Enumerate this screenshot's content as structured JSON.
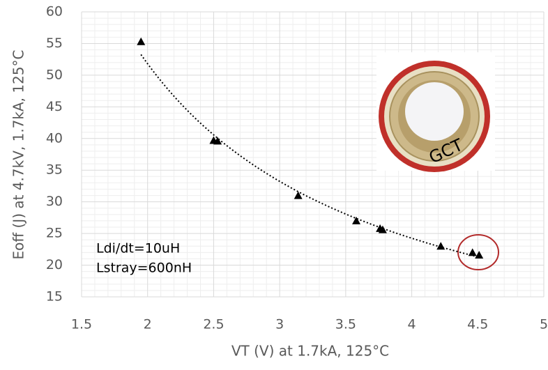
{
  "chart_data": {
    "type": "scatter",
    "x_label": "VT (V) at 1.7kA, 125°C",
    "y_label": "Eoff (J) at 4.7kV, 1.7kA, 125°C",
    "x": [
      1.95,
      2.5,
      2.53,
      3.14,
      3.58,
      3.76,
      3.78,
      4.22,
      4.46,
      4.51
    ],
    "values": [
      55.3,
      39.7,
      39.6,
      31.0,
      27.0,
      25.8,
      25.6,
      23.0,
      22.0,
      21.6
    ],
    "color": "#000000",
    "trendline": "power",
    "xlim": [
      1.5,
      5
    ],
    "xticks": [
      1.5,
      2,
      2.5,
      3,
      3.5,
      4,
      4.5,
      5
    ],
    "ylim": [
      15,
      60
    ],
    "yticks": [
      15,
      20,
      25,
      30,
      35,
      40,
      45,
      50,
      55,
      60
    ],
    "grid": true,
    "annotations": [
      "Ldi/dt=10uH",
      "Lstray=600nH",
      "GCT"
    ]
  }
}
